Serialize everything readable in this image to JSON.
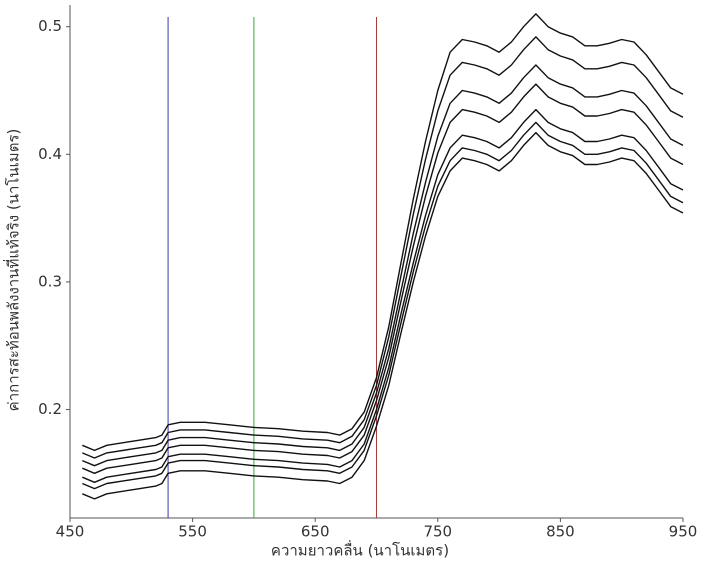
{
  "chart_data": {
    "type": "line",
    "xlabel": "ความยาวคลื่น (นาโนเมตร)",
    "ylabel": "ค่าการสะท้อนพลังงานที่แท้จริง (นาโนเมตร)",
    "x": [
      460,
      470,
      480,
      500,
      520,
      525,
      530,
      540,
      560,
      580,
      600,
      620,
      640,
      660,
      670,
      680,
      690,
      700,
      710,
      720,
      730,
      740,
      750,
      760,
      770,
      780,
      790,
      800,
      810,
      820,
      830,
      840,
      850,
      860,
      870,
      880,
      890,
      900,
      910,
      920,
      930,
      940,
      950
    ],
    "series": [
      {
        "color": "#111111",
        "values": [
          0.172,
          0.168,
          0.172,
          0.175,
          0.178,
          0.18,
          0.188,
          0.19,
          0.19,
          0.188,
          0.186,
          0.185,
          0.183,
          0.182,
          0.18,
          0.185,
          0.198,
          0.225,
          0.265,
          0.315,
          0.365,
          0.41,
          0.45,
          0.48,
          0.49,
          0.488,
          0.485,
          0.48,
          0.488,
          0.5,
          0.51,
          0.5,
          0.495,
          0.492,
          0.485,
          0.485,
          0.487,
          0.49,
          0.488,
          0.478,
          0.465,
          0.452,
          0.447
        ]
      },
      {
        "color": "#111111",
        "values": [
          0.166,
          0.162,
          0.166,
          0.169,
          0.172,
          0.174,
          0.182,
          0.184,
          0.184,
          0.182,
          0.18,
          0.179,
          0.177,
          0.176,
          0.174,
          0.179,
          0.192,
          0.219,
          0.257,
          0.305,
          0.353,
          0.396,
          0.434,
          0.462,
          0.472,
          0.47,
          0.467,
          0.462,
          0.47,
          0.482,
          0.492,
          0.482,
          0.477,
          0.474,
          0.467,
          0.467,
          0.469,
          0.472,
          0.47,
          0.46,
          0.447,
          0.434,
          0.429
        ]
      },
      {
        "color": "#111111",
        "values": [
          0.16,
          0.156,
          0.16,
          0.163,
          0.166,
          0.168,
          0.176,
          0.178,
          0.178,
          0.176,
          0.174,
          0.173,
          0.171,
          0.17,
          0.168,
          0.173,
          0.186,
          0.213,
          0.248,
          0.293,
          0.338,
          0.378,
          0.414,
          0.44,
          0.45,
          0.448,
          0.445,
          0.44,
          0.448,
          0.46,
          0.47,
          0.46,
          0.455,
          0.452,
          0.445,
          0.445,
          0.447,
          0.45,
          0.448,
          0.438,
          0.425,
          0.412,
          0.407
        ]
      },
      {
        "color": "#111111",
        "values": [
          0.154,
          0.15,
          0.154,
          0.157,
          0.16,
          0.162,
          0.17,
          0.172,
          0.172,
          0.17,
          0.168,
          0.167,
          0.165,
          0.164,
          0.162,
          0.167,
          0.18,
          0.207,
          0.241,
          0.285,
          0.328,
          0.367,
          0.401,
          0.425,
          0.435,
          0.433,
          0.43,
          0.425,
          0.433,
          0.445,
          0.455,
          0.445,
          0.44,
          0.437,
          0.43,
          0.43,
          0.432,
          0.435,
          0.433,
          0.423,
          0.41,
          0.397,
          0.392
        ]
      },
      {
        "color": "#111111",
        "values": [
          0.147,
          0.143,
          0.147,
          0.15,
          0.153,
          0.155,
          0.163,
          0.165,
          0.165,
          0.163,
          0.161,
          0.16,
          0.158,
          0.157,
          0.155,
          0.16,
          0.173,
          0.2,
          0.233,
          0.275,
          0.315,
          0.352,
          0.384,
          0.405,
          0.415,
          0.413,
          0.41,
          0.405,
          0.413,
          0.425,
          0.435,
          0.425,
          0.42,
          0.417,
          0.41,
          0.41,
          0.412,
          0.415,
          0.413,
          0.403,
          0.39,
          0.377,
          0.372
        ]
      },
      {
        "color": "#111111",
        "values": [
          0.142,
          0.138,
          0.142,
          0.145,
          0.148,
          0.15,
          0.158,
          0.16,
          0.16,
          0.158,
          0.156,
          0.155,
          0.153,
          0.152,
          0.15,
          0.155,
          0.168,
          0.195,
          0.227,
          0.268,
          0.308,
          0.344,
          0.375,
          0.395,
          0.405,
          0.403,
          0.4,
          0.395,
          0.403,
          0.415,
          0.425,
          0.415,
          0.41,
          0.407,
          0.4,
          0.4,
          0.402,
          0.405,
          0.403,
          0.393,
          0.38,
          0.367,
          0.362
        ]
      },
      {
        "color": "#111111",
        "values": [
          0.134,
          0.13,
          0.134,
          0.137,
          0.14,
          0.142,
          0.15,
          0.152,
          0.152,
          0.15,
          0.148,
          0.147,
          0.145,
          0.144,
          0.142,
          0.147,
          0.16,
          0.187,
          0.219,
          0.26,
          0.3,
          0.336,
          0.367,
          0.387,
          0.397,
          0.395,
          0.392,
          0.387,
          0.395,
          0.407,
          0.417,
          0.407,
          0.402,
          0.399,
          0.392,
          0.392,
          0.394,
          0.397,
          0.395,
          0.385,
          0.372,
          0.359,
          0.354
        ]
      }
    ],
    "vlines": [
      {
        "x": 530,
        "color": "#3a3aa8"
      },
      {
        "x": 600,
        "color": "#3aa83a"
      },
      {
        "x": 700,
        "color": "#a83a3a"
      }
    ],
    "xlim": [
      450,
      950
    ],
    "xticks": [
      450,
      550,
      650,
      750,
      850,
      950
    ],
    "ylim": [
      0.115,
      0.517
    ],
    "yticks": [
      0.2,
      0.3,
      0.4,
      0.5
    ],
    "grid": false
  }
}
